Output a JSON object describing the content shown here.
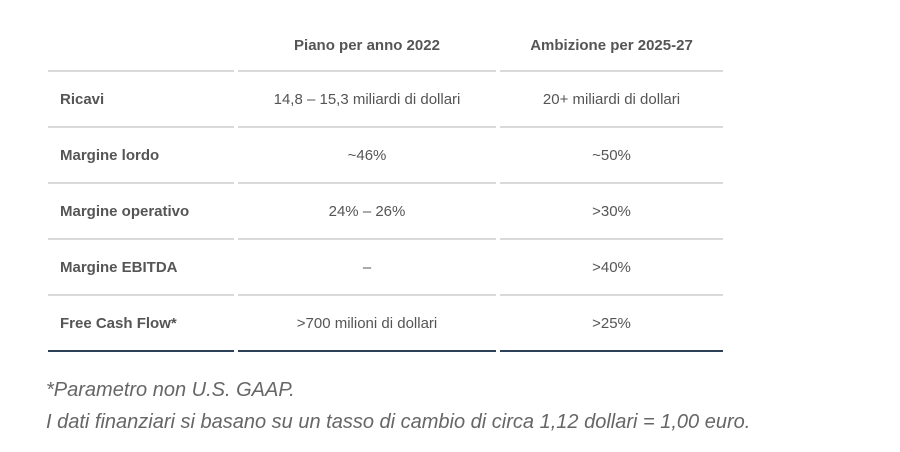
{
  "table": {
    "headers": [
      "",
      "Piano per anno 2022",
      "Ambizione per 2025-27"
    ],
    "rows": [
      {
        "metric": "Ricavi",
        "plan_2022": "14,8 – 15,3 miliardi di dollari",
        "ambition_2025_27": "20+ miliardi di dollari"
      },
      {
        "metric": "Margine lordo",
        "plan_2022": "~46%",
        "ambition_2025_27": "~50%"
      },
      {
        "metric": "Margine operativo",
        "plan_2022": "24% – 26%",
        "ambition_2025_27": ">30%"
      },
      {
        "metric": "Margine EBITDA",
        "plan_2022": "–",
        "ambition_2025_27": ">40%"
      },
      {
        "metric": "Free Cash Flow*",
        "plan_2022": ">700 milioni di dollari",
        "ambition_2025_27": ">25%"
      }
    ]
  },
  "footnotes": {
    "note1": "*Parametro non U.S. GAAP.",
    "note2": "I dati finanziari si basano su un tasso di cambio di circa 1,12 dollari = 1,00 euro."
  },
  "colors": {
    "row_divider": "#d9d9d9",
    "table_bottom_rule": "#2e4057",
    "text": "#555555"
  }
}
